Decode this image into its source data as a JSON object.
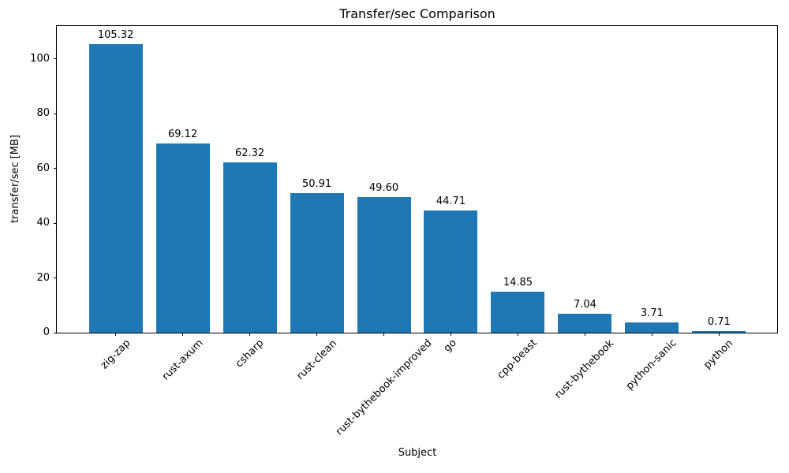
{
  "chart_data": {
    "type": "bar",
    "title": "Transfer/sec Comparison",
    "xlabel": "Subject",
    "ylabel": "transfer/sec [MB]",
    "categories": [
      "zig-zap",
      "rust-axum",
      "csharp",
      "rust-clean",
      "rust-bythebook-improved",
      "go",
      "cpp-beast",
      "rust-bythebook",
      "python-sanic",
      "python"
    ],
    "values": [
      105.32,
      69.12,
      62.32,
      50.91,
      49.6,
      44.71,
      14.85,
      7.04,
      3.71,
      0.71
    ],
    "value_labels": [
      "105.32",
      "69.12",
      "62.32",
      "50.91",
      "49.60",
      "44.71",
      "14.85",
      "7.04",
      "3.71",
      "0.71"
    ],
    "yticks": [
      0,
      20,
      40,
      60,
      80,
      100
    ],
    "ylim": [
      0,
      112
    ],
    "bar_color": "#1f77b4",
    "text_color": "#000000",
    "x_tick_rotation_deg": 45,
    "legend": "none",
    "grid": false
  }
}
